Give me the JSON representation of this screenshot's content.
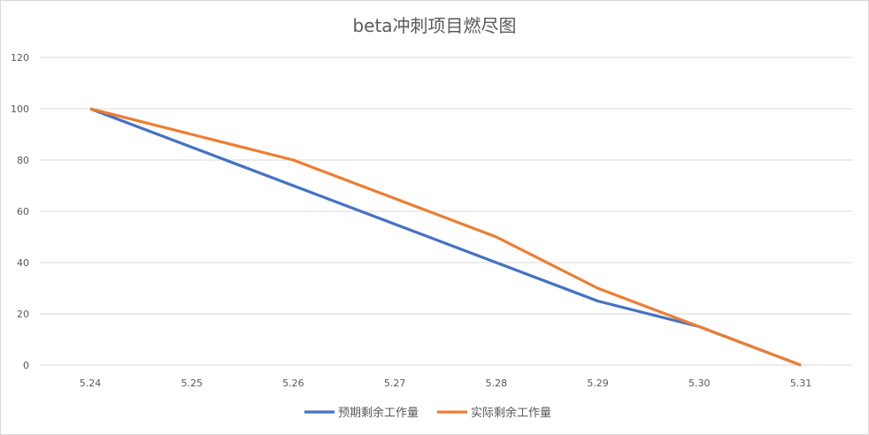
{
  "chart_data": {
    "type": "line",
    "title": "beta冲刺项目燃尽图",
    "xlabel": "",
    "ylabel": "",
    "categories": [
      "5.24",
      "5.25",
      "5.26",
      "5.27",
      "5.28",
      "5.29",
      "5.30",
      "5.31"
    ],
    "ylim": [
      0,
      120
    ],
    "yticks": [
      0,
      20,
      40,
      60,
      80,
      100,
      120
    ],
    "grid": true,
    "legend_position": "bottom",
    "series": [
      {
        "name": "预期剩余工作量",
        "color": "#4472c4",
        "values": [
          100,
          85,
          70,
          55,
          40,
          25,
          15,
          0
        ]
      },
      {
        "name": "实际剩余工作量",
        "color": "#ed7d31",
        "values": [
          100,
          90,
          80,
          65,
          50,
          30,
          15,
          0
        ]
      }
    ]
  }
}
